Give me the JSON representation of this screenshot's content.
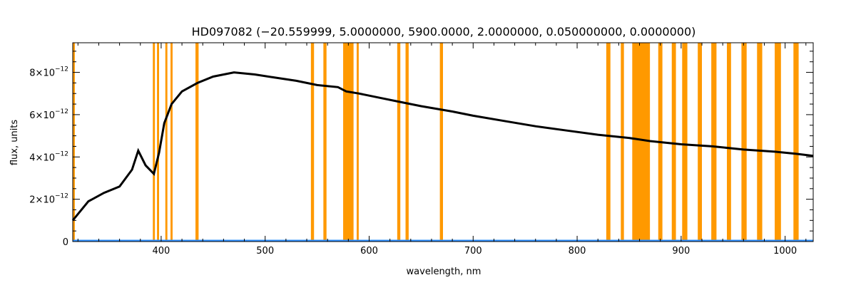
{
  "chart_data": {
    "type": "line",
    "title": "HD097082   (−20.559999, 5.0000000, 5900.0000, 2.0000000, 0.050000000, 0.0000000)",
    "xlabel": "wavelength, nm",
    "ylabel": "flux, units",
    "xlim": [
      315,
      1027
    ],
    "ylim": [
      0,
      9.4e-12
    ],
    "x_ticks": [
      400,
      500,
      600,
      700,
      800,
      900,
      1000
    ],
    "y_ticks": [
      {
        "value": 0,
        "mantissa": "0",
        "exponent": ""
      },
      {
        "value": 2e-12,
        "mantissa": "2×10",
        "exponent": "−12"
      },
      {
        "value": 4e-12,
        "mantissa": "4×10",
        "exponent": "−12"
      },
      {
        "value": 6e-12,
        "mantissa": "6×10",
        "exponent": "−12"
      },
      {
        "value": 8e-12,
        "mantissa": "8×10",
        "exponent": "−12"
      }
    ],
    "grid": false,
    "series": [
      {
        "color": "#000000",
        "x": [
          315,
          330,
          345,
          360,
          372,
          378,
          385,
          393,
          398,
          403,
          410,
          420,
          435,
          450,
          470,
          490,
          510,
          530,
          550,
          570,
          578,
          590,
          610,
          630,
          650,
          680,
          700,
          730,
          760,
          790,
          820,
          850,
          870,
          900,
          930,
          960,
          990,
          1010,
          1027
        ],
        "y": [
          1e-12,
          1.9e-12,
          2.3e-12,
          2.6e-12,
          3.4e-12,
          4.3e-12,
          3.6e-12,
          3.2e-12,
          4.2e-12,
          5.6e-12,
          6.5e-12,
          7.1e-12,
          7.5e-12,
          7.8e-12,
          8e-12,
          7.9e-12,
          7.75e-12,
          7.6e-12,
          7.4e-12,
          7.3e-12,
          7.1e-12,
          7e-12,
          6.8e-12,
          6.6e-12,
          6.4e-12,
          6.15e-12,
          5.95e-12,
          5.7e-12,
          5.45e-12,
          5.25e-12,
          5.05e-12,
          4.9e-12,
          4.75e-12,
          4.6e-12,
          4.5e-12,
          4.35e-12,
          4.25e-12,
          4.15e-12,
          4.05e-12
        ]
      },
      {
        "color": "#2f8fff",
        "x": [
          315,
          1027
        ],
        "y": [
          5e-14,
          5e-14
        ]
      }
    ],
    "masked_bands": {
      "color": "#ff9900",
      "ranges": [
        [
          315,
          317
        ],
        [
          392,
          394
        ],
        [
          396,
          398
        ],
        [
          404,
          406
        ],
        [
          409,
          411
        ],
        [
          433,
          436
        ],
        [
          544,
          547
        ],
        [
          556,
          559
        ],
        [
          575,
          585
        ],
        [
          588,
          590
        ],
        [
          627,
          630
        ],
        [
          635,
          638
        ],
        [
          668,
          671
        ],
        [
          828,
          832
        ],
        [
          842,
          845
        ],
        [
          853,
          870
        ],
        [
          878,
          882
        ],
        [
          891,
          895
        ],
        [
          901,
          906
        ],
        [
          916,
          920
        ],
        [
          929,
          934
        ],
        [
          944,
          948
        ],
        [
          958,
          963
        ],
        [
          973,
          978
        ],
        [
          990,
          996
        ],
        [
          1008,
          1013
        ]
      ]
    }
  }
}
